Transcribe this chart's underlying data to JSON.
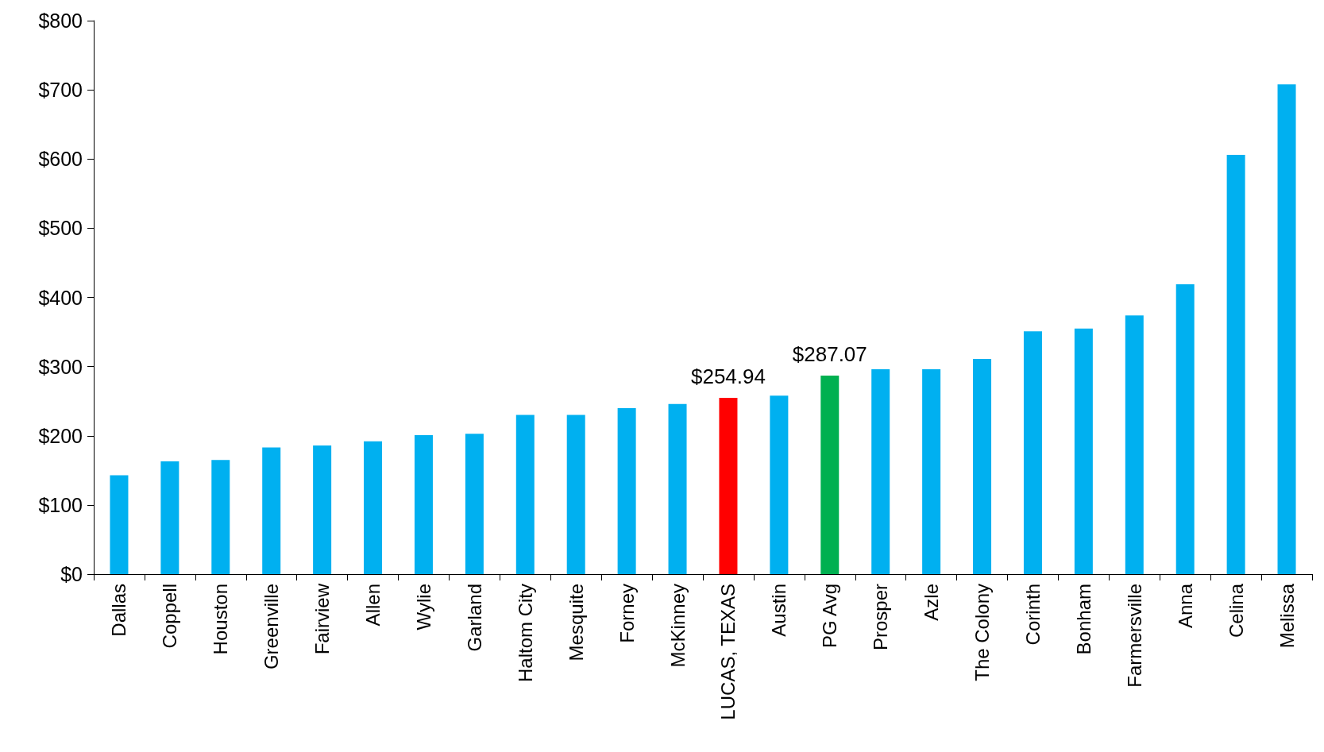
{
  "chart_data": {
    "type": "bar",
    "categories": [
      "Dallas",
      "Coppell",
      "Houston",
      "Greenville",
      "Fairview",
      "Allen",
      "Wylie",
      "Garland",
      "Haltom City",
      "Mesquite",
      "Forney",
      "McKinney",
      "LUCAS, TEXAS",
      "Austin",
      "PG Avg",
      "Prosper",
      "Azle",
      "The Colony",
      "Corinth",
      "Bonham",
      "Farmersville",
      "Anna",
      "Celina",
      "Melissa"
    ],
    "values": [
      143,
      163,
      165,
      183,
      186,
      192,
      201,
      203,
      230,
      230,
      240,
      246,
      254.94,
      258,
      287.07,
      296,
      296,
      311,
      351,
      355,
      374,
      419,
      606,
      708
    ],
    "colors": [
      "#00b0f0",
      "#00b0f0",
      "#00b0f0",
      "#00b0f0",
      "#00b0f0",
      "#00b0f0",
      "#00b0f0",
      "#00b0f0",
      "#00b0f0",
      "#00b0f0",
      "#00b0f0",
      "#00b0f0",
      "#ff0000",
      "#00b0f0",
      "#00b050",
      "#00b0f0",
      "#00b0f0",
      "#00b0f0",
      "#00b0f0",
      "#00b0f0",
      "#00b0f0",
      "#00b0f0",
      "#00b0f0",
      "#00b0f0"
    ],
    "value_labels": [
      null,
      null,
      null,
      null,
      null,
      null,
      null,
      null,
      null,
      null,
      null,
      null,
      "$254.94",
      null,
      "$287.07",
      null,
      null,
      null,
      null,
      null,
      null,
      null,
      null,
      null
    ],
    "ylim": [
      0,
      800
    ],
    "yticks": [
      {
        "value": 0,
        "label": "$0"
      },
      {
        "value": 100,
        "label": "$100"
      },
      {
        "value": 200,
        "label": "$200"
      },
      {
        "value": 300,
        "label": "$300"
      },
      {
        "value": 400,
        "label": "$400"
      },
      {
        "value": 500,
        "label": "$500"
      },
      {
        "value": 600,
        "label": "$600"
      },
      {
        "value": 700,
        "label": "$700"
      },
      {
        "value": 800,
        "label": "$800"
      }
    ],
    "grid": false
  }
}
